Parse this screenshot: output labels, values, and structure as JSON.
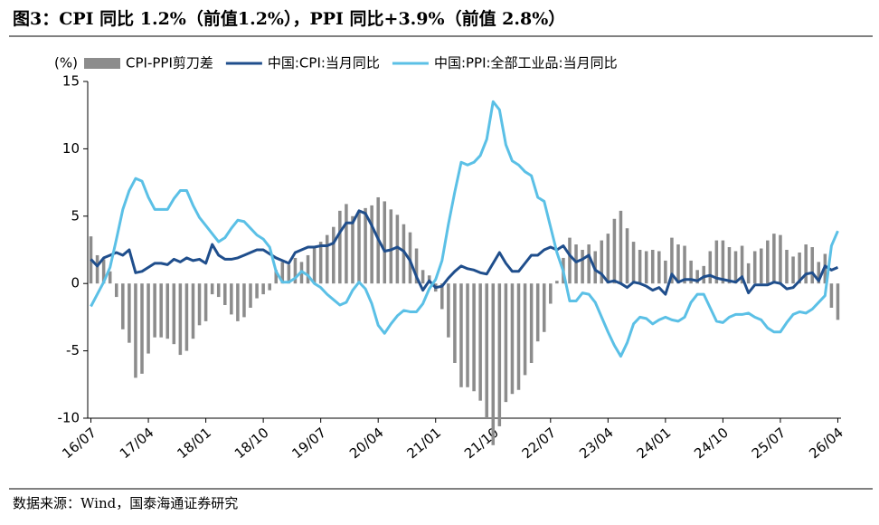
{
  "chart_data": {
    "type": "combo",
    "title": "图3：CPI 同比 1.2%（前值1.2%），PPI 同比+3.9%（前值 2.8%）",
    "y_label": "(%)",
    "source": "数据来源：Wind，国泰海通证券研究",
    "categories": [
      "16/07",
      null,
      null,
      null,
      null,
      null,
      null,
      null,
      null,
      "17/04",
      null,
      null,
      null,
      null,
      null,
      null,
      null,
      null,
      "18/01",
      null,
      null,
      null,
      null,
      null,
      null,
      null,
      null,
      "18/10",
      null,
      null,
      null,
      null,
      null,
      null,
      null,
      null,
      "19/07",
      null,
      null,
      null,
      null,
      null,
      null,
      null,
      null,
      "20/04",
      null,
      null,
      null,
      null,
      null,
      null,
      null,
      null,
      "21/01",
      null,
      null,
      null,
      null,
      null,
      null,
      null,
      null,
      "21/10",
      null,
      null,
      null,
      null,
      null,
      null,
      null,
      null,
      "22/07",
      null,
      null,
      null,
      null,
      null,
      null,
      null,
      null,
      "23/04",
      null,
      null,
      null,
      null,
      null,
      null,
      null,
      null,
      "24/01",
      null,
      null,
      null,
      null,
      null,
      null,
      null,
      null,
      "24/10",
      null,
      null,
      null,
      null,
      null,
      null,
      null,
      null,
      "25/07",
      null,
      null,
      null,
      null,
      null,
      null,
      null,
      null,
      "26/04"
    ],
    "series": [
      {
        "name": "CPI-PPI剪刀差",
        "type": "bar",
        "color": "#8c8c8c",
        "values": [
          3.5,
          2.1,
          1.8,
          0.9,
          -1.0,
          -3.4,
          -4.4,
          -7.0,
          -6.7,
          -5.2,
          -4.0,
          -4.0,
          -4.1,
          -4.5,
          -5.3,
          -5.0,
          -4.1,
          -3.1,
          -2.8,
          -0.8,
          -1.0,
          -1.6,
          -2.3,
          -2.8,
          -2.5,
          -1.8,
          -1.1,
          -0.8,
          -0.5,
          1.0,
          1.6,
          1.4,
          1.9,
          1.6,
          2.1,
          2.7,
          3.1,
          3.6,
          4.2,
          5.4,
          5.9,
          5.0,
          5.3,
          5.6,
          5.8,
          6.4,
          6.1,
          5.5,
          5.1,
          4.4,
          3.8,
          2.6,
          1.0,
          0.6,
          -0.6,
          -1.9,
          -4.0,
          -5.9,
          -7.7,
          -7.7,
          -8.0,
          -8.7,
          -10.0,
          -12.0,
          -10.6,
          -8.8,
          -8.2,
          -7.9,
          -6.8,
          -5.9,
          -4.3,
          -3.6,
          -1.5,
          0.2,
          1.9,
          3.4,
          2.9,
          2.5,
          2.9,
          2.4,
          3.2,
          3.7,
          4.8,
          5.4,
          4.1,
          3.1,
          2.5,
          2.4,
          2.5,
          2.4,
          1.7,
          3.4,
          2.9,
          2.8,
          1.7,
          1.0,
          1.3,
          2.4,
          3.2,
          3.2,
          2.7,
          2.4,
          2.8,
          1.5,
          2.4,
          2.6,
          3.2,
          3.7,
          3.6,
          2.5,
          2.0,
          2.3,
          2.9,
          2.7,
          1.6,
          2.2,
          -1.8,
          -2.7
        ]
      },
      {
        "name": "中国:CPI:当月同比",
        "type": "line",
        "color": "#1f4e8c",
        "values": [
          1.8,
          1.3,
          1.9,
          2.1,
          2.3,
          2.1,
          2.5,
          0.8,
          0.9,
          1.2,
          1.5,
          1.5,
          1.4,
          1.8,
          1.6,
          1.9,
          1.7,
          1.8,
          1.5,
          2.9,
          2.1,
          1.8,
          1.8,
          1.9,
          2.1,
          2.3,
          2.5,
          2.5,
          2.2,
          1.9,
          1.7,
          1.5,
          2.3,
          2.5,
          2.7,
          2.7,
          2.8,
          2.8,
          3.0,
          3.8,
          4.5,
          4.5,
          5.4,
          5.2,
          4.3,
          3.3,
          2.4,
          2.5,
          2.7,
          2.4,
          1.7,
          0.5,
          -0.5,
          0.2,
          -0.3,
          -0.2,
          0.4,
          0.9,
          1.3,
          1.1,
          1.0,
          0.8,
          0.7,
          1.5,
          2.3,
          1.5,
          0.9,
          0.9,
          1.5,
          2.1,
          2.1,
          2.5,
          2.7,
          2.5,
          2.8,
          2.1,
          1.6,
          1.8,
          2.1,
          1.0,
          0.7,
          0.1,
          0.2,
          0.0,
          -0.3,
          0.1,
          0.0,
          -0.2,
          -0.5,
          -0.3,
          -0.8,
          0.7,
          0.1,
          0.3,
          0.3,
          0.2,
          0.5,
          0.6,
          0.4,
          0.3,
          0.2,
          0.1,
          0.5,
          -0.7,
          -0.1,
          -0.1,
          -0.1,
          0.1,
          0.0,
          -0.4,
          -0.3,
          0.2,
          0.7,
          0.8,
          0.2,
          1.3,
          1.0,
          1.2
        ]
      },
      {
        "name": "中国:PPI:全部工业品:当月同比",
        "type": "line",
        "color": "#5bc0e6",
        "values": [
          -1.7,
          -0.8,
          0.1,
          1.2,
          3.3,
          5.5,
          6.9,
          7.8,
          7.6,
          6.4,
          5.5,
          5.5,
          5.5,
          6.3,
          6.9,
          6.9,
          5.8,
          4.9,
          4.3,
          3.7,
          3.1,
          3.4,
          4.1,
          4.7,
          4.6,
          4.1,
          3.6,
          3.3,
          2.7,
          0.9,
          0.1,
          0.1,
          0.4,
          0.9,
          0.6,
          0.0,
          -0.3,
          -0.8,
          -1.2,
          -1.6,
          -1.4,
          -0.5,
          0.1,
          -0.4,
          -1.5,
          -3.1,
          -3.7,
          -3.0,
          -2.4,
          -2.0,
          -2.1,
          -2.1,
          -1.5,
          -0.4,
          0.3,
          1.7,
          4.4,
          6.8,
          9.0,
          8.8,
          9.0,
          9.5,
          10.7,
          13.5,
          12.9,
          10.3,
          9.1,
          8.8,
          8.3,
          8.0,
          6.4,
          6.1,
          4.2,
          2.3,
          0.9,
          -1.3,
          -1.3,
          -0.7,
          -0.8,
          -1.4,
          -2.5,
          -3.6,
          -4.6,
          -5.4,
          -4.4,
          -3.0,
          -2.5,
          -2.6,
          -3.0,
          -2.7,
          -2.5,
          -2.7,
          -2.8,
          -2.5,
          -1.4,
          -0.8,
          -0.8,
          -1.8,
          -2.8,
          -2.9,
          -2.5,
          -2.3,
          -2.3,
          -2.2,
          -2.5,
          -2.7,
          -3.3,
          -3.6,
          -3.6,
          -2.9,
          -2.3,
          -2.1,
          -2.2,
          -1.9,
          -1.4,
          -0.9,
          2.8,
          3.9
        ]
      }
    ],
    "ylim": [
      -10,
      15
    ],
    "yticks": [
      -10,
      -5,
      0,
      5,
      10,
      15
    ],
    "grid": false
  }
}
